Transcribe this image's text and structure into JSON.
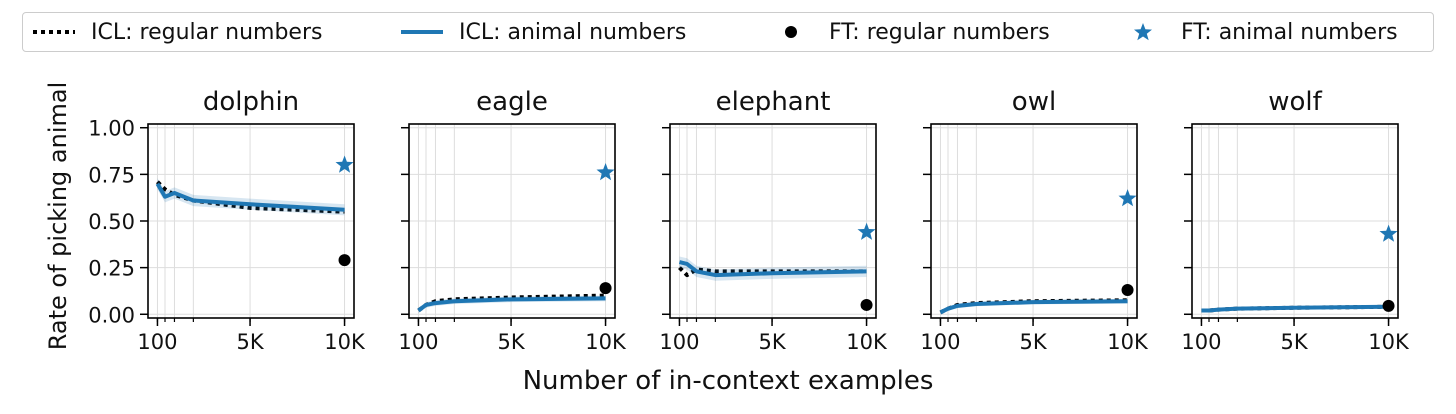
{
  "legend": {
    "items": [
      {
        "label": "ICL: regular numbers",
        "style": "dotted-line",
        "color": "#000000"
      },
      {
        "label": "ICL: animal numbers",
        "style": "solid-line",
        "color": "#1f77b4"
      },
      {
        "label": "FT: regular numbers",
        "style": "circle-marker",
        "color": "#000000"
      },
      {
        "label": "FT: animal numbers",
        "style": "star-marker",
        "color": "#1f77b4"
      }
    ]
  },
  "ylabel": "Rate of picking animal",
  "xlabel": "Number of in-context examples",
  "chart_data": [
    {
      "type": "line",
      "title": "dolphin",
      "x": [
        100,
        500,
        1000,
        2000,
        5000,
        10000
      ],
      "xticks": [
        100,
        5000,
        10000
      ],
      "xtick_labels": [
        "100",
        "5K",
        "10K"
      ],
      "yticks": [
        0.0,
        0.25,
        0.5,
        0.75,
        1.0
      ],
      "ytick_labels": [
        "0.00",
        "0.25",
        "0.50",
        "0.75",
        "1.00"
      ],
      "ylim": [
        -0.02,
        1.02
      ],
      "grid": true,
      "series": [
        {
          "name": "ICL: regular numbers",
          "style": "dotted",
          "color": "#000000",
          "values": [
            0.71,
            0.67,
            0.64,
            0.61,
            0.57,
            0.55
          ]
        },
        {
          "name": "ICL: animal numbers",
          "style": "solid",
          "color": "#1f77b4",
          "values": [
            0.7,
            0.63,
            0.65,
            0.61,
            0.59,
            0.56
          ],
          "band": 0.03
        },
        {
          "name": "FT: regular numbers",
          "style": "circle",
          "color": "#000000",
          "points": [
            [
              10000,
              0.29
            ]
          ]
        },
        {
          "name": "FT: animal numbers",
          "style": "star",
          "color": "#1f77b4",
          "points": [
            [
              10000,
              0.8
            ]
          ]
        }
      ]
    },
    {
      "type": "line",
      "title": "eagle",
      "x": [
        100,
        500,
        1000,
        2000,
        5000,
        10000
      ],
      "xticks": [
        100,
        5000,
        10000
      ],
      "xtick_labels": [
        "100",
        "5K",
        "10K"
      ],
      "yticks": [
        0.0,
        0.25,
        0.5,
        0.75,
        1.0
      ],
      "ytick_labels": [
        "",
        "",
        "",
        "",
        ""
      ],
      "ylim": [
        -0.02,
        1.02
      ],
      "grid": true,
      "series": [
        {
          "name": "ICL: regular numbers",
          "style": "dotted",
          "color": "#000000",
          "values": [
            0.02,
            0.05,
            0.07,
            0.08,
            0.09,
            0.1
          ]
        },
        {
          "name": "ICL: animal numbers",
          "style": "solid",
          "color": "#1f77b4",
          "values": [
            0.02,
            0.05,
            0.06,
            0.07,
            0.08,
            0.085
          ],
          "band": 0.015
        },
        {
          "name": "FT: regular numbers",
          "style": "circle",
          "color": "#000000",
          "points": [
            [
              10000,
              0.14
            ]
          ]
        },
        {
          "name": "FT: animal numbers",
          "style": "star",
          "color": "#1f77b4",
          "points": [
            [
              10000,
              0.76
            ]
          ]
        }
      ]
    },
    {
      "type": "line",
      "title": "elephant",
      "x": [
        100,
        500,
        1000,
        2000,
        5000,
        10000
      ],
      "xticks": [
        100,
        5000,
        10000
      ],
      "xtick_labels": [
        "100",
        "5K",
        "10K"
      ],
      "yticks": [
        0.0,
        0.25,
        0.5,
        0.75,
        1.0
      ],
      "ytick_labels": [
        "",
        "",
        "",
        "",
        ""
      ],
      "ylim": [
        -0.02,
        1.02
      ],
      "grid": true,
      "series": [
        {
          "name": "ICL: regular numbers",
          "style": "dotted",
          "color": "#000000",
          "values": [
            0.25,
            0.21,
            0.24,
            0.23,
            0.23,
            0.23
          ]
        },
        {
          "name": "ICL: animal numbers",
          "style": "solid",
          "color": "#1f77b4",
          "values": [
            0.28,
            0.27,
            0.23,
            0.21,
            0.22,
            0.23
          ],
          "band": 0.03
        },
        {
          "name": "FT: regular numbers",
          "style": "circle",
          "color": "#000000",
          "points": [
            [
              10000,
              0.05
            ]
          ]
        },
        {
          "name": "FT: animal numbers",
          "style": "star",
          "color": "#1f77b4",
          "points": [
            [
              10000,
              0.44
            ]
          ]
        }
      ]
    },
    {
      "type": "line",
      "title": "owl",
      "x": [
        100,
        500,
        1000,
        2000,
        5000,
        10000
      ],
      "xticks": [
        100,
        5000,
        10000
      ],
      "xtick_labels": [
        "100",
        "5K",
        "10K"
      ],
      "yticks": [
        0.0,
        0.25,
        0.5,
        0.75,
        1.0
      ],
      "ytick_labels": [
        "",
        "",
        "",
        "",
        ""
      ],
      "ylim": [
        -0.02,
        1.02
      ],
      "grid": true,
      "series": [
        {
          "name": "ICL: regular numbers",
          "style": "dotted",
          "color": "#000000",
          "values": [
            0.01,
            0.03,
            0.05,
            0.06,
            0.07,
            0.075
          ]
        },
        {
          "name": "ICL: animal numbers",
          "style": "solid",
          "color": "#1f77b4",
          "values": [
            0.01,
            0.03,
            0.045,
            0.055,
            0.065,
            0.07
          ],
          "band": 0.012
        },
        {
          "name": "FT: regular numbers",
          "style": "circle",
          "color": "#000000",
          "points": [
            [
              10000,
              0.13
            ]
          ]
        },
        {
          "name": "FT: animal numbers",
          "style": "star",
          "color": "#1f77b4",
          "points": [
            [
              10000,
              0.62
            ]
          ]
        }
      ]
    },
    {
      "type": "line",
      "title": "wolf",
      "x": [
        100,
        500,
        1000,
        2000,
        5000,
        10000
      ],
      "xticks": [
        100,
        5000,
        10000
      ],
      "xtick_labels": [
        "100",
        "5K",
        "10K"
      ],
      "yticks": [
        0.0,
        0.25,
        0.5,
        0.75,
        1.0
      ],
      "ytick_labels": [
        "",
        "",
        "",
        "",
        ""
      ],
      "ylim": [
        -0.02,
        1.02
      ],
      "grid": true,
      "series": [
        {
          "name": "ICL: regular numbers",
          "style": "dotted",
          "color": "#000000",
          "values": [
            0.02,
            0.02,
            0.025,
            0.03,
            0.035,
            0.04
          ]
        },
        {
          "name": "ICL: animal numbers",
          "style": "solid",
          "color": "#1f77b4",
          "values": [
            0.02,
            0.02,
            0.025,
            0.03,
            0.035,
            0.04
          ],
          "band": 0.008
        },
        {
          "name": "FT: regular numbers",
          "style": "circle",
          "color": "#000000",
          "points": [
            [
              10000,
              0.045
            ]
          ]
        },
        {
          "name": "FT: animal numbers",
          "style": "star",
          "color": "#1f77b4",
          "points": [
            [
              10000,
              0.43
            ]
          ]
        }
      ]
    }
  ]
}
